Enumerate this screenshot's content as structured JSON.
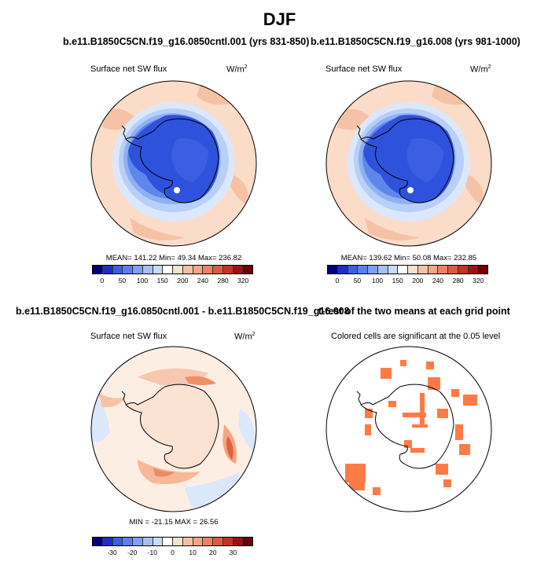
{
  "figure": {
    "title": "DJF"
  },
  "panels": [
    {
      "title": "b.e11.B1850C5CN.f19_g16.0850cntl.001 (yrs 831-850)",
      "subtitle": "Surface net SW flux",
      "units": "W/m",
      "units_sup": "2",
      "stats": "MEAN= 141.22  Min=  49.34  Max= 236.82",
      "colorbar_labels": [
        "0",
        "50",
        "100",
        "150",
        "200",
        "240",
        "280",
        "320"
      ],
      "colorbar_colors": [
        "#000080",
        "#1a2fc9",
        "#3a5fe0",
        "#5a7ff0",
        "#7f9ff5",
        "#a5c0f8",
        "#c8dbfb",
        "#ffffff",
        "#fbe0d0",
        "#f8c0a0",
        "#f4a582",
        "#f08060",
        "#e05a3a",
        "#c83020",
        "#a01010",
        "#700000"
      ]
    },
    {
      "title": "b.e11.B1850C5CN.f19_g16.008 (yrs 981-1000)",
      "subtitle": "Surface net SW flux",
      "units": "W/m",
      "units_sup": "2",
      "stats": "MEAN= 139.62  Min=  50.08  Max= 232.85",
      "colorbar_labels": [
        "0",
        "50",
        "100",
        "150",
        "200",
        "240",
        "280",
        "320"
      ],
      "colorbar_colors": [
        "#000080",
        "#1a2fc9",
        "#3a5fe0",
        "#5a7ff0",
        "#7f9ff5",
        "#a5c0f8",
        "#c8dbfb",
        "#ffffff",
        "#fbe0d0",
        "#f8c0a0",
        "#f4a582",
        "#f08060",
        "#e05a3a",
        "#c83020",
        "#a01010",
        "#700000"
      ]
    },
    {
      "title": "b.e11.B1850C5CN.f19_g16.0850cntl.001 - b.e11.B1850C5CN.f19_g16.008",
      "subtitle": "Surface net SW flux",
      "units": "W/m",
      "units_sup": "2",
      "stats": "MIN = -21.15  MAX =  26.56",
      "colorbar_labels": [
        "-30",
        "-20",
        "-10",
        "0",
        "10",
        "20",
        "30"
      ],
      "colorbar_colors": [
        "#000080",
        "#1a2fc9",
        "#3a5fe0",
        "#5a7ff0",
        "#7f9ff5",
        "#a5c0f8",
        "#c8dbfb",
        "#ffffff",
        "#fbe0d0",
        "#f8c0a0",
        "#f4a582",
        "#f08060",
        "#e05a3a",
        "#c83020",
        "#a01010",
        "#700000"
      ]
    },
    {
      "title": "t-test of the two means at each grid point",
      "subtitle": "Colored cells are significant at the 0.05 level",
      "significance_color": "#ff7a45"
    }
  ]
}
